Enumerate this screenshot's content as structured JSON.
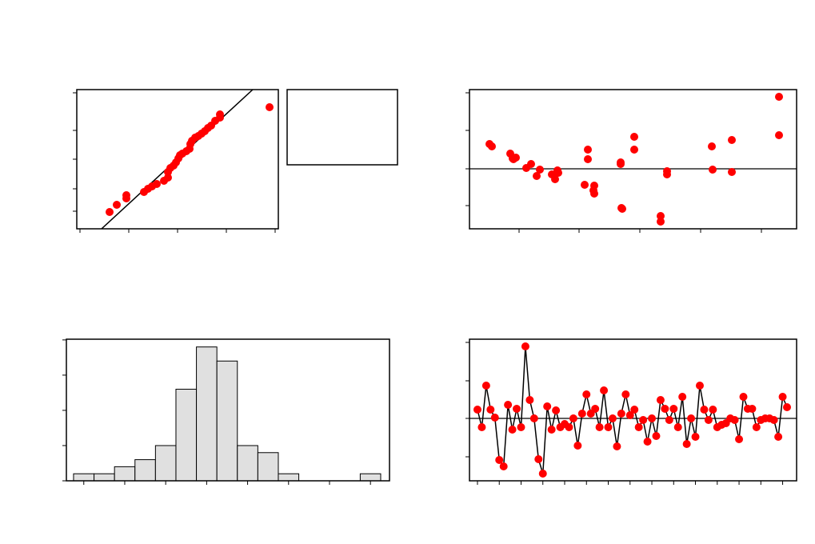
{
  "chart_data": [
    {
      "type": "probability",
      "x": [
        41,
        50,
        62,
        62,
        84,
        89,
        94,
        100,
        109,
        114,
        114,
        117,
        121,
        124,
        127,
        129,
        132,
        137,
        141,
        142,
        144,
        148,
        152,
        156,
        160,
        164,
        168,
        173,
        179,
        179,
        241
      ],
      "values": [
        21,
        30,
        38,
        42,
        46,
        50,
        53,
        56,
        60,
        64,
        71,
        76,
        79,
        83,
        88,
        92,
        94,
        97,
        100,
        106,
        110,
        114,
        116,
        119,
        122,
        126,
        129,
        135,
        139,
        143,
        152
      ],
      "fit": {
        "x": [
          31,
          220
        ],
        "values": [
          0,
          174
        ]
      },
      "color": "#ff0000",
      "xlim": [
        0,
        252
      ],
      "xticks": [
        4,
        65,
        126,
        187,
        248
      ],
      "ylim": [
        0,
        174
      ],
      "yticks": [
        22,
        50,
        87,
        123,
        170
      ]
    },
    {
      "type": "scatter",
      "x": [
        25,
        28,
        51,
        54,
        58,
        55,
        71,
        77,
        84,
        88,
        103,
        107,
        110,
        111,
        144,
        148,
        148,
        156,
        156,
        155,
        189,
        189,
        190,
        191,
        206,
        206,
        239,
        239,
        247,
        247,
        303,
        304,
        328,
        328,
        387,
        387
      ],
      "values": [
        31,
        28,
        19,
        13,
        14,
        12,
        1,
        6,
        -9,
        -1,
        -7,
        -13,
        -2,
        -5,
        -20,
        24,
        12,
        -21,
        -31,
        -27,
        8,
        6,
        -49,
        -50,
        40,
        24,
        -59,
        -66,
        -3,
        -7,
        28,
        -1,
        36,
        -4,
        90,
        42
      ],
      "hline": 0,
      "color": "#ff0000",
      "xlim": [
        0,
        409
      ],
      "xticks": [
        62,
        137,
        213,
        289,
        365
      ],
      "ylim": [
        -75,
        99
      ],
      "yticks": [
        -46,
        0,
        48,
        95
      ]
    },
    {
      "type": "histogram",
      "bins": [
        -0.5,
        0.5,
        1.5,
        2.5,
        3.5,
        4.5,
        5.5,
        6.5,
        7.5,
        8.5,
        9.5,
        10.5,
        11.5,
        12.5,
        13.5,
        14.5
      ],
      "values": [
        1,
        1,
        2,
        3,
        5,
        13,
        19,
        17,
        5,
        4,
        1,
        0,
        0,
        0,
        1
      ],
      "color": "#e0e0e0",
      "xlim": [
        -0.85,
        14.93
      ],
      "xticks": [
        0,
        2,
        4,
        6,
        8,
        10,
        12,
        14
      ],
      "ylim": [
        0,
        20.1
      ],
      "yticks": [
        0,
        5,
        10,
        15,
        20
      ]
    },
    {
      "type": "line",
      "x": [
        1,
        2,
        3,
        4,
        5,
        6,
        7,
        8,
        9,
        10,
        11,
        12,
        13,
        14,
        15,
        16,
        17,
        18,
        19,
        20,
        21,
        22,
        23,
        24,
        25,
        26,
        27,
        28,
        29,
        30,
        31,
        32,
        33,
        34,
        35,
        36,
        37,
        38,
        39,
        40,
        41,
        42,
        43,
        44,
        45,
        46,
        47,
        48,
        49,
        50,
        51,
        52,
        53,
        54,
        55,
        56,
        57,
        58,
        59,
        60,
        61,
        62,
        63,
        64,
        65,
        66,
        67,
        68,
        69,
        70,
        71,
        72
      ],
      "values": [
        11,
        -11,
        41,
        11,
        1,
        -52,
        -60,
        17,
        -14,
        12,
        -11,
        90,
        23,
        0,
        -51,
        -69,
        15,
        -14,
        10,
        -11,
        -7,
        -11,
        0,
        -34,
        6,
        30,
        6,
        12,
        -11,
        35,
        -11,
        0,
        -35,
        6,
        30,
        4,
        11,
        -11,
        -2,
        -29,
        0,
        -22,
        23,
        12,
        -2,
        12,
        -11,
        27,
        -32,
        0,
        -23,
        41,
        11,
        -2,
        11,
        -11,
        -8,
        -6,
        0,
        -2,
        -26,
        27,
        12,
        12,
        -11,
        -2,
        0,
        0,
        -2,
        -23,
        27,
        14
      ],
      "hline": 0,
      "color": "#ff0000",
      "xlim": [
        -0.83,
        74.2
      ],
      "xticks": [
        1,
        6,
        11,
        16,
        21,
        26,
        31,
        36,
        41,
        46,
        51,
        56,
        61,
        66,
        71
      ],
      "ylim": [
        -78,
        99
      ],
      "yticks": [
        -48,
        0,
        47,
        95
      ]
    }
  ]
}
